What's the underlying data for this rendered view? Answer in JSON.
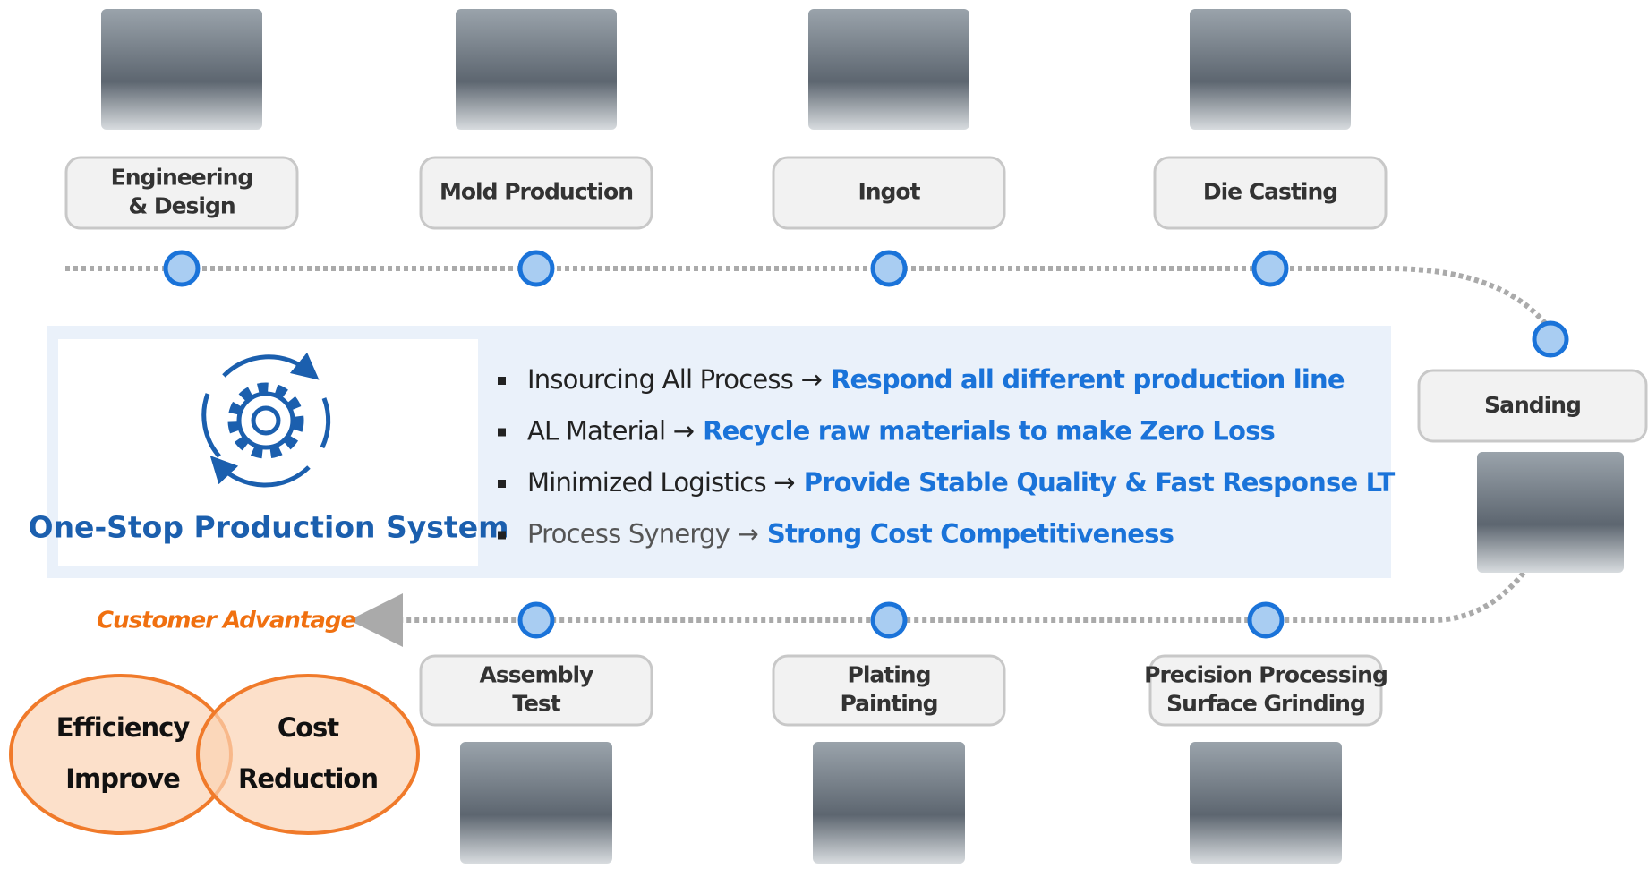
{
  "top_steps": [
    [
      "Engineering",
      "& Design"
    ],
    [
      "Mold Production"
    ],
    [
      "Ingot"
    ],
    [
      "Die Casting"
    ]
  ],
  "side_step": "Sanding",
  "bottom_steps": [
    [
      "Assembly",
      "Test"
    ],
    [
      "Plating",
      "Painting"
    ],
    [
      "Precision Processing",
      "Surface Grinding"
    ]
  ],
  "panel": {
    "title": "One-Stop Production System",
    "items": [
      {
        "lead": "Insourcing All Process →",
        "highlight": "Respond all different production line"
      },
      {
        "lead": "AL Material →",
        "highlight": "Recycle raw materials to make Zero Loss"
      },
      {
        "lead": "Minimized Logistics →",
        "highlight": "Provide Stable Quality & Fast Response LT"
      },
      {
        "lead": "Process Synergy →",
        "highlight": "Strong Cost Competitiveness"
      }
    ]
  },
  "advantage": {
    "label": "Customer Advantage",
    "circles": [
      [
        "Efficiency",
        "Improve"
      ],
      [
        "Cost",
        "Reduction"
      ]
    ]
  }
}
